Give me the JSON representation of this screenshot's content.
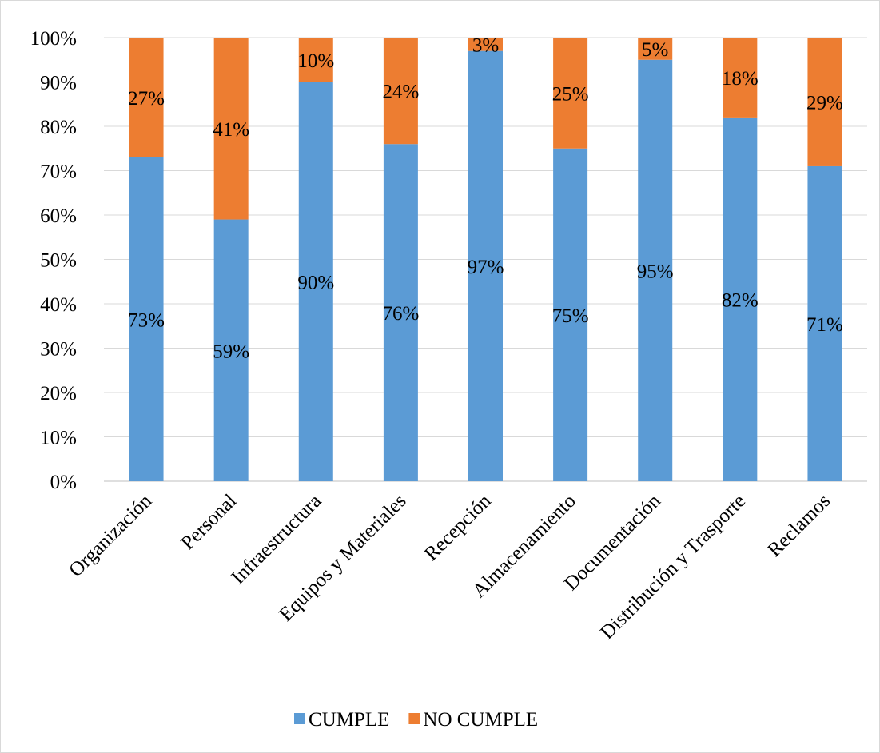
{
  "chart_data": {
    "type": "bar",
    "stacked": true,
    "categories": [
      "Organización",
      "Personal",
      "Infraestructura",
      "Equipos y Materiales",
      "Recepción",
      "Almacenamiento",
      "Documentación",
      "Distribución y Trasporte",
      "Reclamos"
    ],
    "series": [
      {
        "name": "CUMPLE",
        "color": "#5b9bd5",
        "values": [
          73,
          59,
          90,
          76,
          97,
          75,
          95,
          82,
          71
        ],
        "labels": [
          "73%",
          "59%",
          "90%",
          "76%",
          "97%",
          "75%",
          "95%",
          "82%",
          "71%"
        ]
      },
      {
        "name": "NO CUMPLE",
        "color": "#ed7d31",
        "values": [
          27,
          41,
          10,
          24,
          3,
          25,
          5,
          18,
          29
        ],
        "labels": [
          "27%",
          "41%",
          "10%",
          "24%",
          "3%",
          "25%",
          "5%",
          "18%",
          "29%"
        ]
      }
    ],
    "title": "",
    "xlabel": "",
    "ylabel": "",
    "ylim": [
      0,
      100
    ],
    "yticks": [
      "0%",
      "10%",
      "20%",
      "30%",
      "40%",
      "50%",
      "60%",
      "70%",
      "80%",
      "90%",
      "100%"
    ],
    "grid": true,
    "legend_position": "bottom"
  }
}
